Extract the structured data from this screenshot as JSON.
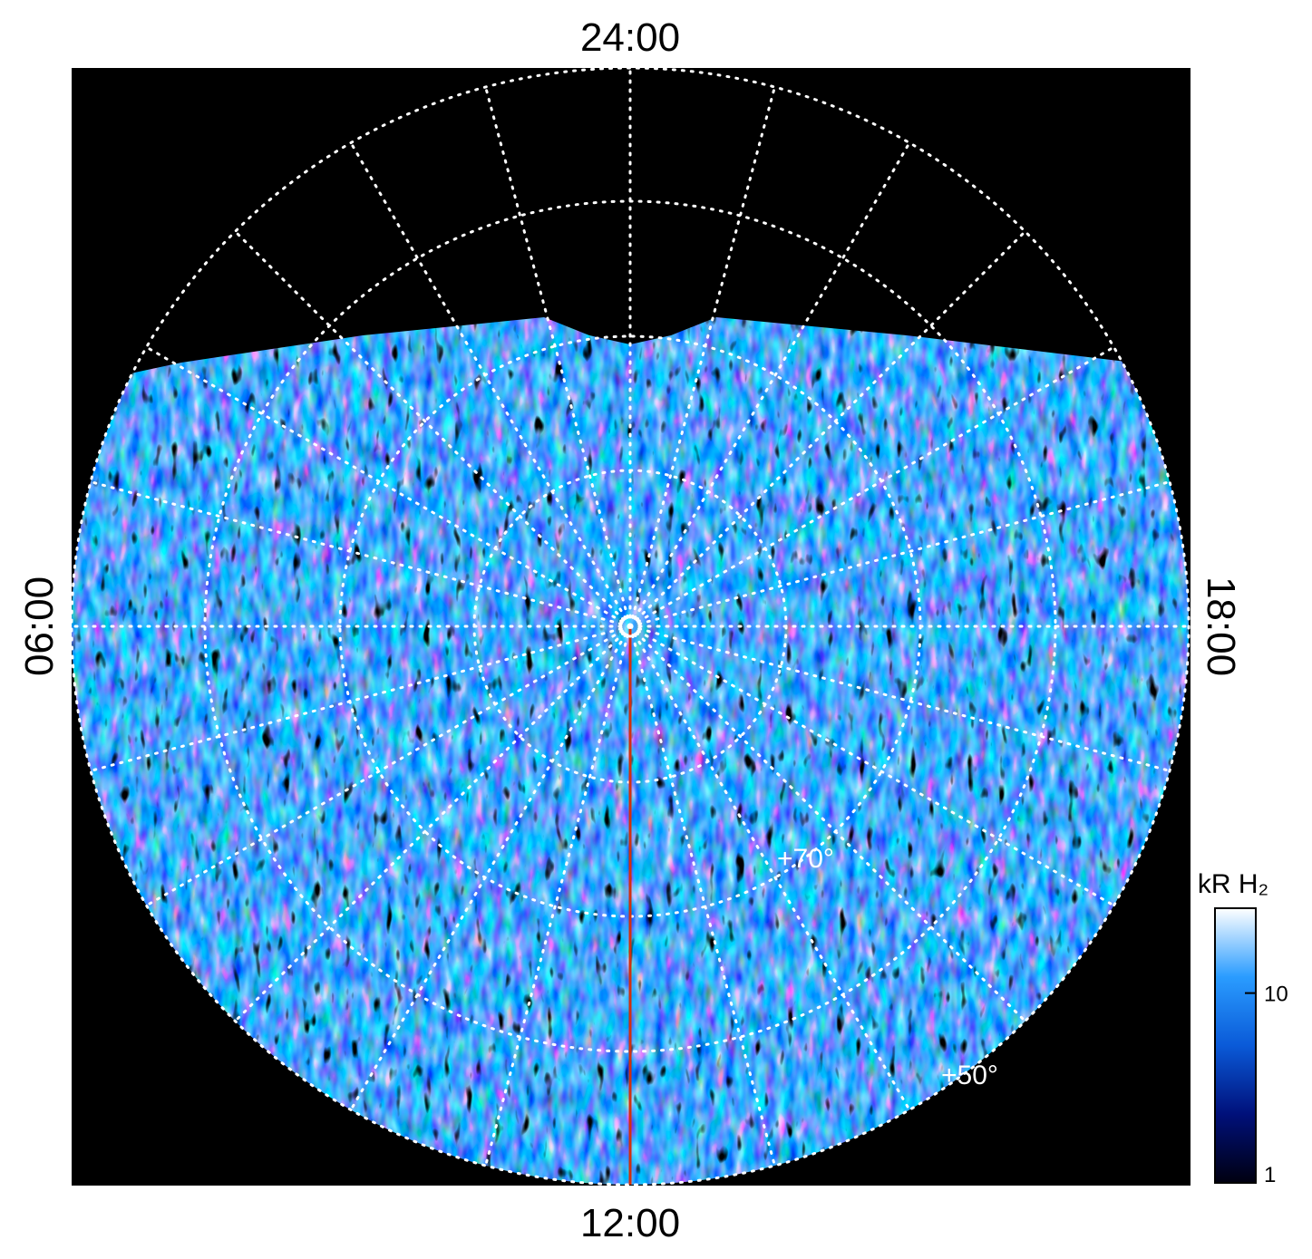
{
  "chart_data": {
    "type": "polar-image",
    "mlt_labels": [
      "24:00",
      "06:00",
      "12:00",
      "18:00"
    ],
    "lat_labels": [
      "+70°",
      "+50°"
    ],
    "colorbar": {
      "label": "kR H₂",
      "scale": "log",
      "zlim": [
        1,
        28
      ],
      "zticks": [
        1,
        10
      ],
      "colors": [
        "#000010",
        "#00107a",
        "#0a5ad8",
        "#2a9cff",
        "#ffffff"
      ]
    }
  }
}
